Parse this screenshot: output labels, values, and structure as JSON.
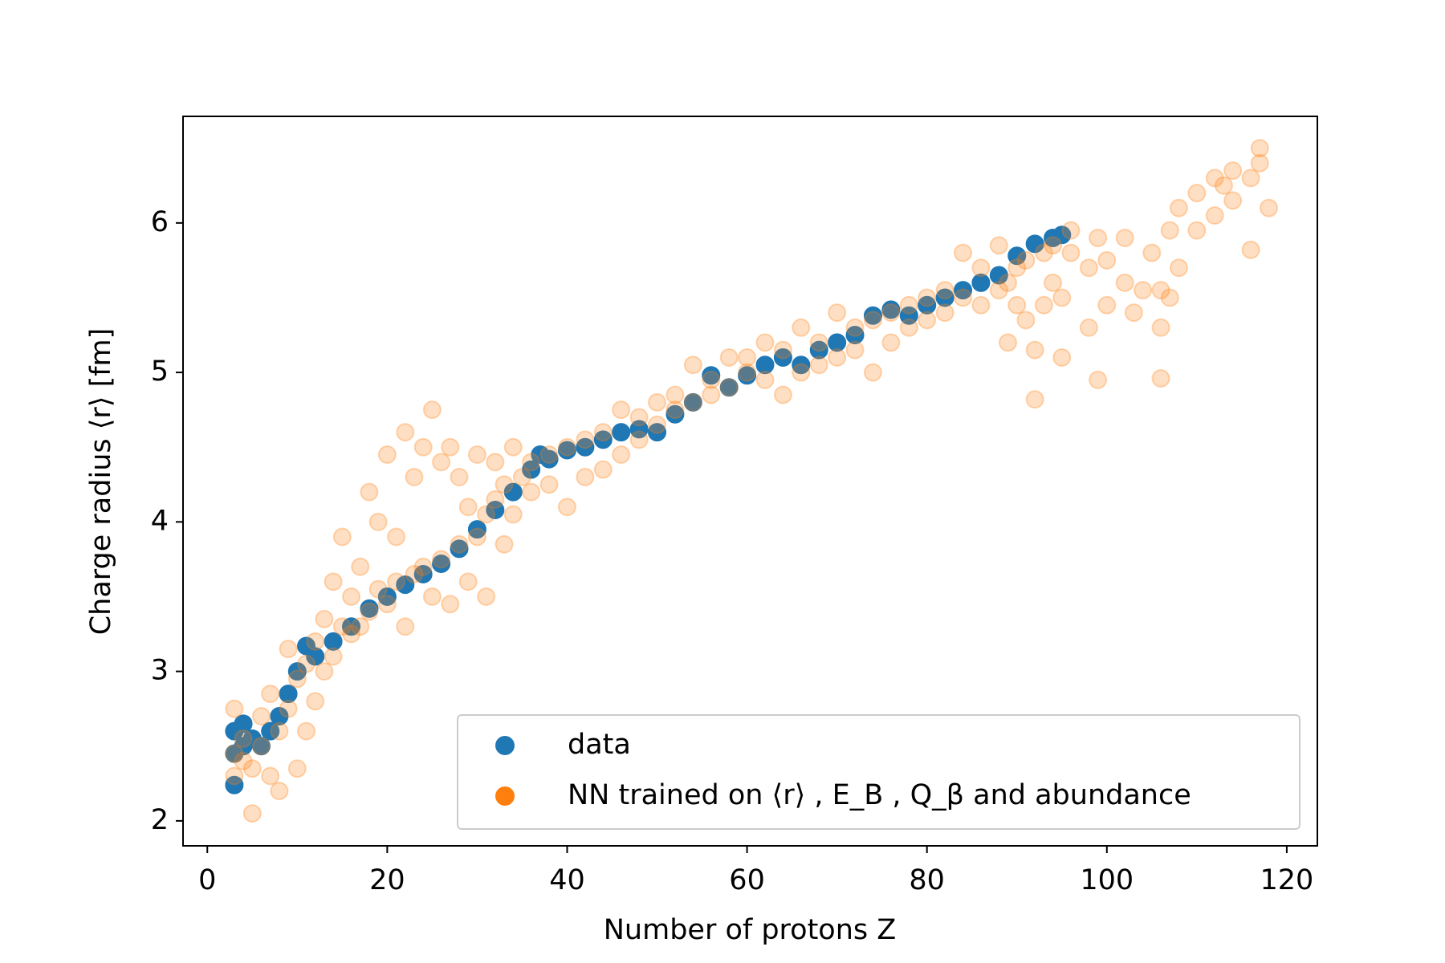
{
  "chart_data": {
    "type": "scatter",
    "xlabel": "Number of protons Z",
    "ylabel": "Charge radius ⟨r⟩ [fm]",
    "xlim": [
      -2.7,
      123.4
    ],
    "ylim": [
      1.833,
      6.713
    ],
    "xticks": [
      0,
      20,
      40,
      60,
      80,
      100,
      120
    ],
    "yticks": [
      2,
      3,
      4,
      5,
      6
    ],
    "legend": "lower right",
    "series": [
      {
        "name": "data",
        "color": "#1f77b4",
        "x": [
          3,
          3,
          3,
          4,
          4,
          5,
          6,
          7,
          8,
          9,
          10,
          11,
          12,
          14,
          16,
          18,
          20,
          22,
          24,
          26,
          28,
          30,
          32,
          34,
          36,
          37,
          38,
          40,
          42,
          44,
          46,
          48,
          50,
          52,
          54,
          56,
          58,
          60,
          62,
          64,
          66,
          68,
          70,
          72,
          74,
          76,
          78,
          80,
          82,
          84,
          86,
          88,
          90,
          92,
          94,
          95
        ],
        "values": [
          2.24,
          2.45,
          2.6,
          2.5,
          2.65,
          2.55,
          2.5,
          2.6,
          2.7,
          2.85,
          3.0,
          3.17,
          3.1,
          3.2,
          3.3,
          3.42,
          3.5,
          3.58,
          3.65,
          3.72,
          3.82,
          3.95,
          4.08,
          4.2,
          4.35,
          4.45,
          4.42,
          4.48,
          4.5,
          4.55,
          4.6,
          4.62,
          4.6,
          4.72,
          4.8,
          4.98,
          4.9,
          4.98,
          5.05,
          5.1,
          5.05,
          5.15,
          5.2,
          5.25,
          5.38,
          5.42,
          5.38,
          5.45,
          5.5,
          5.55,
          5.6,
          5.65,
          5.78,
          5.86,
          5.9,
          5.92
        ]
      },
      {
        "name": "NN trained on ⟨r⟩ , E_B , Q_β and abundance",
        "color": "#ff7f0e",
        "x": [
          3,
          3,
          3,
          4,
          4,
          5,
          5,
          6,
          6,
          7,
          7,
          8,
          8,
          9,
          9,
          10,
          10,
          11,
          11,
          12,
          12,
          13,
          13,
          14,
          14,
          15,
          15,
          16,
          16,
          17,
          17,
          18,
          18,
          19,
          19,
          20,
          20,
          21,
          21,
          22,
          22,
          23,
          23,
          24,
          24,
          25,
          25,
          26,
          26,
          27,
          27,
          28,
          28,
          29,
          29,
          30,
          30,
          31,
          31,
          32,
          32,
          33,
          33,
          34,
          34,
          35,
          36,
          36,
          38,
          38,
          40,
          40,
          42,
          42,
          44,
          44,
          46,
          46,
          48,
          48,
          50,
          50,
          52,
          52,
          54,
          54,
          56,
          56,
          58,
          58,
          60,
          60,
          62,
          62,
          64,
          64,
          66,
          66,
          68,
          68,
          70,
          70,
          72,
          72,
          74,
          74,
          76,
          76,
          78,
          78,
          80,
          80,
          82,
          82,
          84,
          84,
          86,
          86,
          88,
          88,
          89,
          89,
          90,
          90,
          91,
          91,
          92,
          92,
          93,
          93,
          94,
          94,
          95,
          95,
          96,
          96,
          98,
          98,
          99,
          99,
          100,
          100,
          102,
          102,
          103,
          104,
          105,
          106,
          106,
          106,
          107,
          107,
          108,
          108,
          110,
          110,
          112,
          112,
          114,
          114,
          116,
          116,
          117,
          117,
          118,
          113
        ],
        "values": [
          2.3,
          2.45,
          2.75,
          2.4,
          2.55,
          2.05,
          2.35,
          2.5,
          2.7,
          2.3,
          2.85,
          2.2,
          2.6,
          3.15,
          2.75,
          2.95,
          2.35,
          2.6,
          3.05,
          2.8,
          3.2,
          3.0,
          3.35,
          3.1,
          3.6,
          3.3,
          3.9,
          3.5,
          3.25,
          3.7,
          3.3,
          4.2,
          3.4,
          4.0,
          3.55,
          4.45,
          3.45,
          3.9,
          3.6,
          4.6,
          3.3,
          4.3,
          3.65,
          4.5,
          3.7,
          4.75,
          3.5,
          4.4,
          3.75,
          4.5,
          3.45,
          4.3,
          3.85,
          4.1,
          3.6,
          4.45,
          3.9,
          3.5,
          4.05,
          4.4,
          4.15,
          3.85,
          4.25,
          4.5,
          4.05,
          4.3,
          4.4,
          4.2,
          4.45,
          4.25,
          4.5,
          4.1,
          4.55,
          4.3,
          4.6,
          4.35,
          4.75,
          4.45,
          4.55,
          4.7,
          4.65,
          4.8,
          4.75,
          4.85,
          5.05,
          4.8,
          4.95,
          4.85,
          5.1,
          4.9,
          5.0,
          5.1,
          5.2,
          4.95,
          5.15,
          4.85,
          5.3,
          5.0,
          5.2,
          5.05,
          5.4,
          5.1,
          5.3,
          5.15,
          5.35,
          5.0,
          5.4,
          5.2,
          5.45,
          5.3,
          5.5,
          5.35,
          5.55,
          5.4,
          5.8,
          5.5,
          5.7,
          5.45,
          5.85,
          5.55,
          5.2,
          5.6,
          5.45,
          5.7,
          5.35,
          5.75,
          4.82,
          5.15,
          5.45,
          5.8,
          5.6,
          5.85,
          5.1,
          5.5,
          5.8,
          5.95,
          5.3,
          5.7,
          4.95,
          5.9,
          5.45,
          5.75,
          5.9,
          5.6,
          5.4,
          5.55,
          5.8,
          4.96,
          5.3,
          5.55,
          5.95,
          5.5,
          6.1,
          5.7,
          6.2,
          5.95,
          6.3,
          6.05,
          6.35,
          6.15,
          5.82,
          6.3,
          6.5,
          6.4,
          6.1,
          6.25
        ]
      }
    ]
  }
}
